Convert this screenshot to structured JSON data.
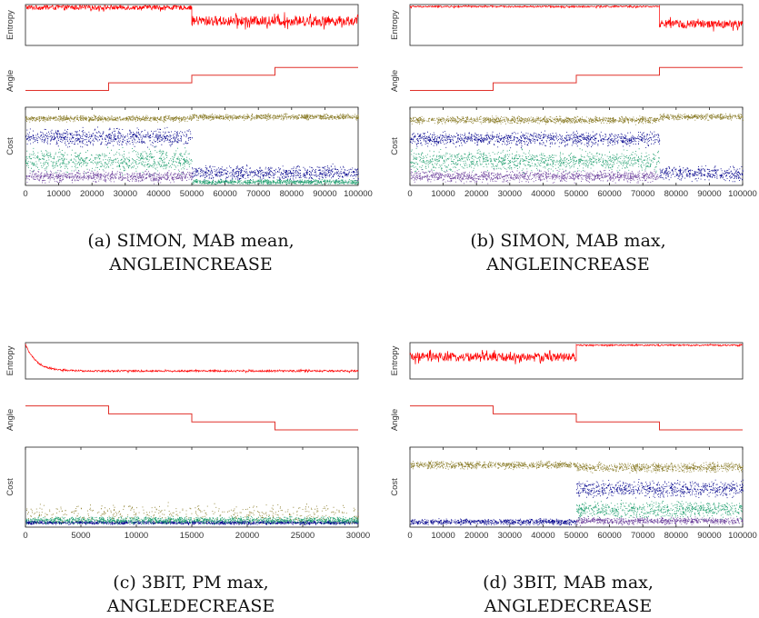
{
  "chart_data": [
    {
      "type": "line",
      "caption_line1": "(a) SIMON, MAB mean,",
      "caption_line2": "ANGLEINCREASE",
      "ylabels": {
        "entropy": "Entropy",
        "angle": "Angle",
        "cost": "Cost"
      },
      "xlim": [
        0,
        100000
      ],
      "xticks": [
        0,
        10000,
        20000,
        30000,
        40000,
        50000,
        60000,
        70000,
        80000,
        90000,
        100000
      ],
      "xtick_labels": [
        "0",
        "10000",
        "20000",
        "30000",
        "40000",
        "50000",
        "60000",
        "70000",
        "80000",
        "90000",
        "100000"
      ],
      "entropy": {
        "color": "#ff0000",
        "ylim": [
          0,
          1
        ],
        "segments": [
          {
            "x": [
              0,
              50000
            ],
            "level": 0.93,
            "noise": 0.06
          },
          {
            "x": [
              50000,
              100000
            ],
            "level": 0.6,
            "noise": 0.12
          }
        ]
      },
      "angle": {
        "color": "#e0302a",
        "ylim": [
          0,
          4
        ],
        "steps": [
          {
            "x": [
              0,
              25000
            ],
            "y": 1
          },
          {
            "x": [
              25000,
              50000
            ],
            "y": 1.8
          },
          {
            "x": [
              50000,
              75000
            ],
            "y": 2.6
          },
          {
            "x": [
              75000,
              100000
            ],
            "y": 3.4
          }
        ]
      },
      "cost": {
        "ylim": [
          0,
          1
        ],
        "bands": [
          {
            "x": [
              0,
              50000
            ],
            "center": 0.62,
            "spread": 0.15,
            "color": "#00008b"
          },
          {
            "x": [
              0,
              50000
            ],
            "center": 0.86,
            "spread": 0.05,
            "color": "#8b7d2a"
          },
          {
            "x": [
              0,
              50000
            ],
            "center": 0.32,
            "spread": 0.2,
            "color": "#1f9e6e"
          },
          {
            "x": [
              0,
              50000
            ],
            "center": 0.12,
            "spread": 0.1,
            "color": "#6a3d9a"
          },
          {
            "x": [
              50000,
              100000
            ],
            "center": 0.16,
            "spread": 0.13,
            "color": "#00008b"
          },
          {
            "x": [
              50000,
              100000
            ],
            "center": 0.88,
            "spread": 0.05,
            "color": "#8b7d2a"
          },
          {
            "x": [
              50000,
              100000
            ],
            "center": 0.05,
            "spread": 0.04,
            "color": "#1f9e6e"
          }
        ]
      }
    },
    {
      "type": "line",
      "caption_line1": "(b) SIMON, MAB max,",
      "caption_line2": "ANGLEINCREASE",
      "ylabels": {
        "entropy": "Entropy",
        "angle": "Angle",
        "cost": "Cost"
      },
      "xlim": [
        0,
        100000
      ],
      "xticks": [
        0,
        10000,
        20000,
        30000,
        40000,
        50000,
        60000,
        70000,
        80000,
        90000,
        100000
      ],
      "xtick_labels": [
        "0",
        "10000",
        "20000",
        "30000",
        "40000",
        "50000",
        "60000",
        "70000",
        "80000",
        "90000",
        "100000"
      ],
      "entropy": {
        "color": "#ff0000",
        "ylim": [
          0,
          1
        ],
        "segments": [
          {
            "x": [
              0,
              75000
            ],
            "level": 0.95,
            "noise": 0.02
          },
          {
            "x": [
              75000,
              100000
            ],
            "level": 0.52,
            "noise": 0.1
          }
        ]
      },
      "angle": {
        "color": "#e0302a",
        "ylim": [
          0,
          4
        ],
        "steps": [
          {
            "x": [
              0,
              25000
            ],
            "y": 1
          },
          {
            "x": [
              25000,
              50000
            ],
            "y": 1.8
          },
          {
            "x": [
              50000,
              75000
            ],
            "y": 2.6
          },
          {
            "x": [
              75000,
              100000
            ],
            "y": 3.4
          }
        ]
      },
      "cost": {
        "ylim": [
          0,
          1
        ],
        "bands": [
          {
            "x": [
              0,
              75000
            ],
            "center": 0.6,
            "spread": 0.12,
            "color": "#00008b"
          },
          {
            "x": [
              0,
              75000
            ],
            "center": 0.84,
            "spread": 0.06,
            "color": "#8b7d2a"
          },
          {
            "x": [
              0,
              75000
            ],
            "center": 0.32,
            "spread": 0.18,
            "color": "#1f9e6e"
          },
          {
            "x": [
              0,
              75000
            ],
            "center": 0.12,
            "spread": 0.1,
            "color": "#6a3d9a"
          },
          {
            "x": [
              75000,
              100000
            ],
            "center": 0.16,
            "spread": 0.12,
            "color": "#00008b"
          },
          {
            "x": [
              75000,
              100000
            ],
            "center": 0.88,
            "spread": 0.05,
            "color": "#8b7d2a"
          }
        ]
      }
    },
    {
      "type": "line",
      "caption_line1": "(c) 3BIT, PM max,",
      "caption_line2": "ANGLEDECREASE",
      "ylabels": {
        "entropy": "Entropy",
        "angle": "Angle",
        "cost": "Cost"
      },
      "xlim": [
        0,
        30000
      ],
      "xticks": [
        0,
        5000,
        10000,
        15000,
        20000,
        25000,
        30000
      ],
      "xtick_labels": [
        "0",
        "5000",
        "10000",
        "15000",
        "20000",
        "25000",
        "30000"
      ],
      "entropy": {
        "color": "#ff0000",
        "ylim": [
          0,
          1
        ],
        "decay_from": 0.95,
        "segments": [
          {
            "x": [
              0,
              30000
            ],
            "level": 0.22,
            "noise": 0.025
          }
        ]
      },
      "angle": {
        "color": "#e0302a",
        "ylim": [
          0,
          4
        ],
        "steps": [
          {
            "x": [
              0,
              7500
            ],
            "y": 3.4
          },
          {
            "x": [
              7500,
              15000
            ],
            "y": 2.6
          },
          {
            "x": [
              15000,
              22500
            ],
            "y": 1.8
          },
          {
            "x": [
              22500,
              30000
            ],
            "y": 1
          }
        ]
      },
      "cost": {
        "ylim": [
          0,
          1
        ],
        "bands": [
          {
            "x": [
              0,
              30000
            ],
            "center": 0.06,
            "spread": 0.03,
            "color": "#00008b"
          },
          {
            "x": [
              0,
              30000
            ],
            "center": 0.09,
            "spread": 0.06,
            "color": "#1f9e6e"
          },
          {
            "x": [
              0,
              30000
            ],
            "center": 0.18,
            "spread": 0.16,
            "color": "#8b7d2a",
            "sparse": true
          }
        ]
      }
    },
    {
      "type": "line",
      "caption_line1": "(d) 3BIT, MAB max,",
      "caption_line2": "ANGLEDECREASE",
      "ylabels": {
        "entropy": "Entropy",
        "angle": "Angle",
        "cost": "Cost"
      },
      "xlim": [
        0,
        100000
      ],
      "xticks": [
        0,
        10000,
        20000,
        30000,
        40000,
        50000,
        60000,
        70000,
        80000,
        90000,
        100000
      ],
      "xtick_labels": [
        "0",
        "10000",
        "20000",
        "30000",
        "40000",
        "50000",
        "60000",
        "70000",
        "80000",
        "90000",
        "100000"
      ],
      "entropy": {
        "color": "#ff0000",
        "ylim": [
          0,
          1
        ],
        "segments": [
          {
            "x": [
              0,
              50000
            ],
            "level": 0.6,
            "noise": 0.12
          },
          {
            "x": [
              50000,
              100000
            ],
            "level": 0.93,
            "noise": 0.02
          }
        ]
      },
      "angle": {
        "color": "#e0302a",
        "ylim": [
          0,
          4
        ],
        "steps": [
          {
            "x": [
              0,
              25000
            ],
            "y": 3.4
          },
          {
            "x": [
              25000,
              50000
            ],
            "y": 2.6
          },
          {
            "x": [
              50000,
              75000
            ],
            "y": 1.8
          },
          {
            "x": [
              75000,
              100000
            ],
            "y": 1
          }
        ]
      },
      "cost": {
        "ylim": [
          0,
          1
        ],
        "bands": [
          {
            "x": [
              0,
              50000
            ],
            "center": 0.07,
            "spread": 0.05,
            "color": "#00008b"
          },
          {
            "x": [
              0,
              50000
            ],
            "center": 0.78,
            "spread": 0.06,
            "color": "#8b7d2a"
          },
          {
            "x": [
              50000,
              100000
            ],
            "center": 0.48,
            "spread": 0.14,
            "color": "#00008b"
          },
          {
            "x": [
              50000,
              100000
            ],
            "center": 0.75,
            "spread": 0.08,
            "color": "#8b7d2a"
          },
          {
            "x": [
              50000,
              100000
            ],
            "center": 0.22,
            "spread": 0.15,
            "color": "#1f9e6e"
          },
          {
            "x": [
              50000,
              100000
            ],
            "center": 0.08,
            "spread": 0.06,
            "color": "#6a3d9a"
          }
        ]
      }
    }
  ]
}
